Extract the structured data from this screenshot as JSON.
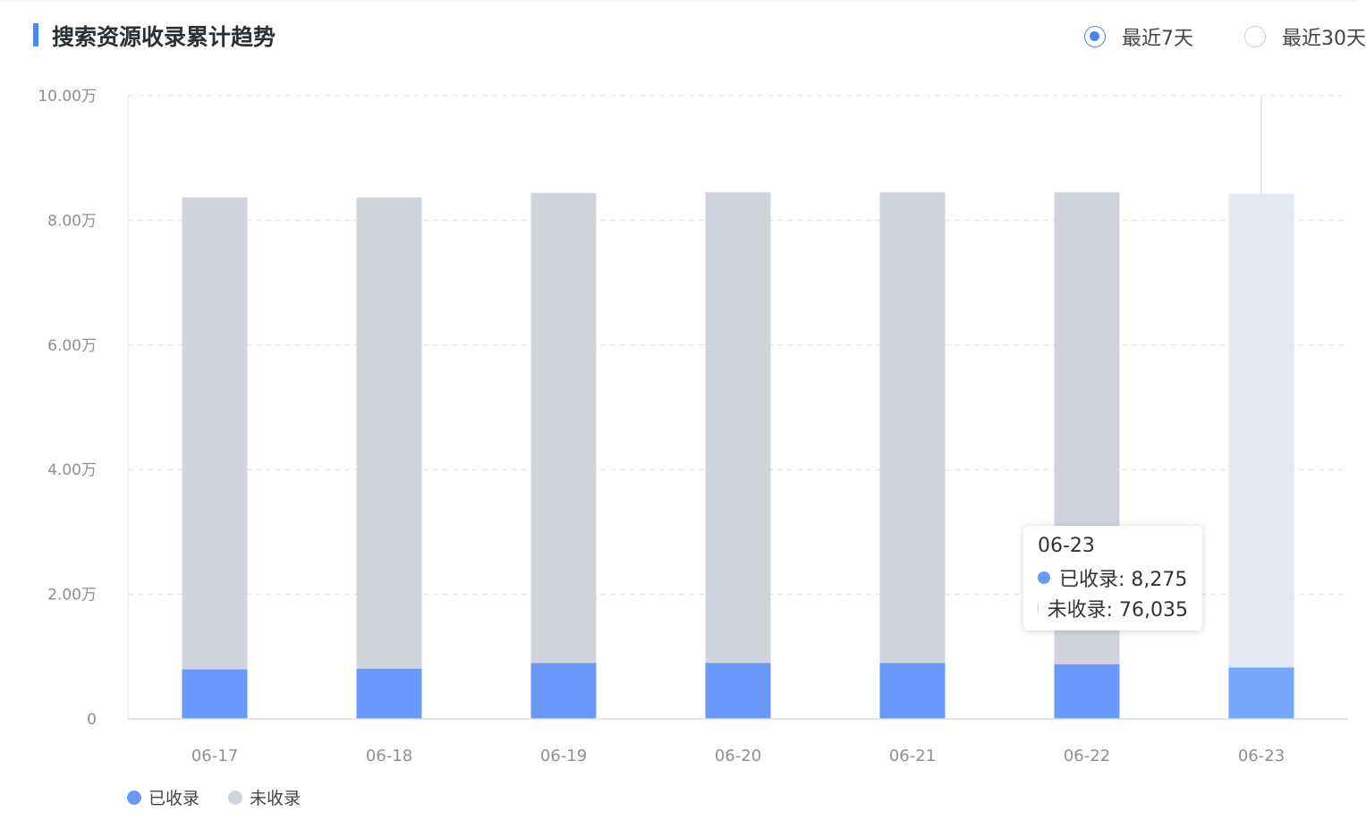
{
  "header": {
    "title": "搜索资源收录累计趋势",
    "accent_color": "#4a86f7"
  },
  "range_selector": {
    "options": [
      {
        "label": "最近7天",
        "checked": true
      },
      {
        "label": "最近30天",
        "checked": false
      }
    ]
  },
  "chart_data": {
    "type": "bar",
    "stacked": true,
    "categories": [
      "06-17",
      "06-18",
      "06-19",
      "06-20",
      "06-21",
      "06-22",
      "06-23"
    ],
    "series": [
      {
        "name": "已收录",
        "color": "#6a99fb",
        "values": [
          7980,
          8080,
          9000,
          9000,
          9000,
          8800,
          8275
        ]
      },
      {
        "name": "未收录",
        "color": "#d0d5dd",
        "values": [
          75700,
          75600,
          75400,
          75500,
          75500,
          75700,
          76035
        ]
      }
    ],
    "ylim": [
      0,
      100000
    ],
    "yticks": [
      {
        "value": 0,
        "label": "0"
      },
      {
        "value": 20000,
        "label": "2.00万"
      },
      {
        "value": 40000,
        "label": "4.00万"
      },
      {
        "value": 60000,
        "label": "6.00万"
      },
      {
        "value": 80000,
        "label": "8.00万"
      },
      {
        "value": 100000,
        "label": "10.00万"
      }
    ],
    "grid": true,
    "legend_position": "bottom-left",
    "highlighted_category": "06-23",
    "highlight_colors": {
      "已收录": "#76a7fc",
      "未收录": "#e3e8f2"
    }
  },
  "tooltip": {
    "date": "06-23",
    "rows": [
      {
        "label": "已收录: 8,275",
        "color": "#6a99fb"
      },
      {
        "label": "未收录: 76,035",
        "color": "#d0d5dd"
      }
    ]
  }
}
